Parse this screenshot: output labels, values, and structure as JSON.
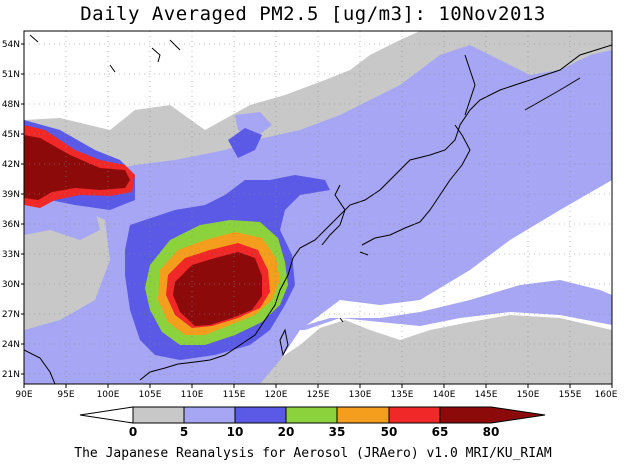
{
  "title": "Daily Averaged PM2.5 [ug/m3]: 10Nov2013",
  "footer": "The Japanese Reanalysis for Aerosol (JRAero) v1.0 MRI/KU_RIAM",
  "map": {
    "lon_range": [
      90,
      160
    ],
    "lat_range": [
      19.5,
      55
    ],
    "lon_ticks": [
      "90E",
      "95E",
      "100E",
      "105E",
      "110E",
      "115E",
      "120E",
      "125E",
      "130E",
      "135E",
      "140E",
      "145E",
      "150E",
      "155E",
      "160E"
    ],
    "lat_ticks": [
      "21N",
      "24N",
      "27N",
      "30N",
      "33N",
      "36N",
      "39N",
      "42N",
      "45N",
      "48N",
      "51N",
      "54N"
    ]
  },
  "colorbar": {
    "labels": [
      "0",
      "5",
      "10",
      "20",
      "35",
      "50",
      "65",
      "80"
    ],
    "colors": [
      "#ffffff",
      "#c8c8c8",
      "#a6a6f4",
      "#5a5ae6",
      "#8cd23c",
      "#f59e1e",
      "#f02828",
      "#8c0a0a"
    ]
  }
}
